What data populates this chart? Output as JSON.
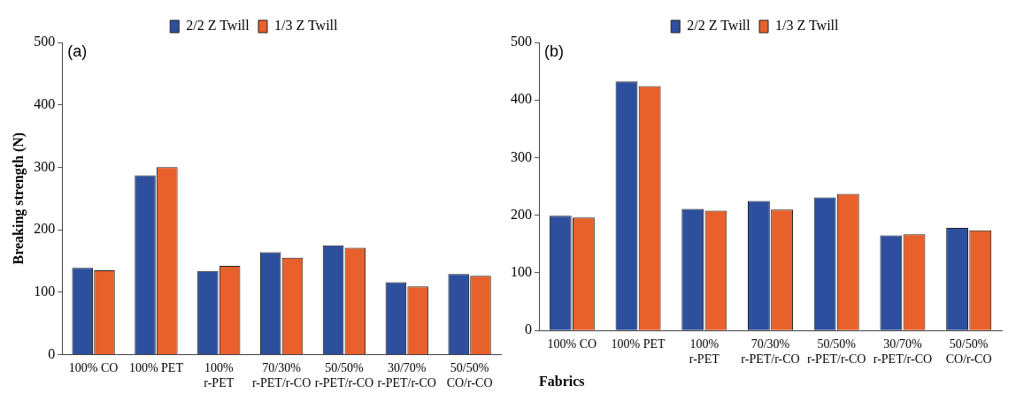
{
  "chart_data": [
    {
      "type": "bar",
      "title": "(a)",
      "ylabel": "Breaking strength (N)",
      "categories": [
        "100% CO",
        "100% PET",
        "100%\nr-PET",
        "70/30%\nr-PET/r-CO",
        "50/50%\nr-PET/r-CO",
        "30/70%\nr-PET/r-CO",
        "50/50%\nCO/r-CO"
      ],
      "series": [
        {
          "name": "2/2 Z Twill",
          "color": "#2e4f9e",
          "values": [
            139,
            287,
            134,
            164,
            175,
            116,
            129
          ]
        },
        {
          "name": "1/3 Z Twill",
          "color": "#e8602c",
          "values": [
            135,
            300,
            142,
            155,
            171,
            109,
            126
          ]
        }
      ],
      "ylim": [
        0,
        500
      ],
      "yticks": [
        0,
        100,
        200,
        300,
        400,
        500
      ],
      "grid": false,
      "legend": "top"
    },
    {
      "type": "bar",
      "title": "(b)",
      "xlabel": "Fabrics",
      "categories": [
        "100% CO",
        "100% PET",
        "100%\nr-PET",
        "70/30%\nr-PET/r-CO",
        "50/50%\nr-PET/r-CO",
        "30/70%\nr-PET/r-CO",
        "50/50%\nCO/r-CO"
      ],
      "series": [
        {
          "name": "2/2 Z Twill",
          "color": "#2e4f9e",
          "values": [
            199,
            432,
            211,
            225,
            231,
            165,
            178
          ]
        },
        {
          "name": "1/3 Z Twill",
          "color": "#e8602c",
          "values": [
            196,
            424,
            208,
            210,
            237,
            167,
            174
          ]
        }
      ],
      "ylim": [
        0,
        500
      ],
      "yticks": [
        0,
        100,
        200,
        300,
        400,
        500
      ],
      "grid": false,
      "legend": "top"
    }
  ]
}
